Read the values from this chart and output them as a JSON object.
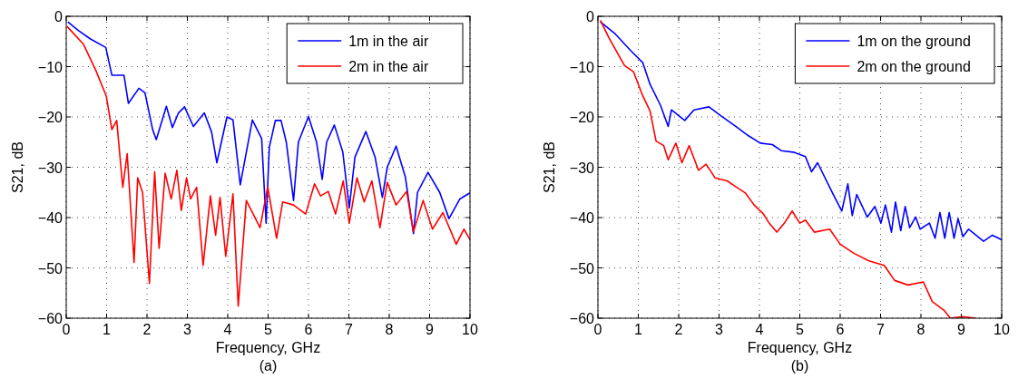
{
  "chart_data": [
    {
      "type": "line",
      "xlabel": "Frequency, GHz",
      "ylabel": "S21, dB",
      "annotations": [
        "(a)"
      ],
      "xlim": [
        0,
        10
      ],
      "ylim": [
        -60,
        0
      ],
      "xticks": [
        0,
        1,
        2,
        3,
        4,
        5,
        6,
        7,
        8,
        9,
        10
      ],
      "yticks": [
        -60,
        -50,
        -40,
        -30,
        -20,
        -10,
        0
      ],
      "grid": true,
      "legend": "top right",
      "marker": "none",
      "line_style": "solid",
      "series": [
        {
          "name": "1m in the air",
          "color": "#0000ff",
          "x": [
            0.04,
            0.3,
            0.6,
            0.98,
            1.13,
            1.43,
            1.54,
            1.8,
            1.95,
            2.14,
            2.23,
            2.48,
            2.63,
            2.78,
            2.93,
            3.15,
            3.42,
            3.6,
            3.73,
            3.98,
            4.13,
            4.31,
            4.61,
            4.84,
            4.95,
            5.03,
            5.18,
            5.32,
            5.45,
            5.63,
            5.75,
            6.0,
            6.2,
            6.34,
            6.45,
            6.64,
            6.85,
            7.01,
            7.15,
            7.42,
            7.65,
            7.83,
            7.95,
            8.17,
            8.4,
            8.6,
            8.7,
            8.96,
            9.25,
            9.48,
            9.75,
            10.0
          ],
          "values": [
            -1.1,
            -2.8,
            -4.5,
            -6.2,
            -11.7,
            -11.7,
            -17.3,
            -14.3,
            -15.2,
            -22.5,
            -24.5,
            -17.9,
            -22.1,
            -19.2,
            -18,
            -21.9,
            -19.2,
            -23,
            -29.1,
            -20,
            -20.6,
            -33.5,
            -20.6,
            -24.3,
            -41.1,
            -26,
            -20.7,
            -20.7,
            -25,
            -36.6,
            -25,
            -19.9,
            -25,
            -32.4,
            -25,
            -21.6,
            -27,
            -38.1,
            -28,
            -22.9,
            -28,
            -36,
            -30,
            -25.8,
            -32,
            -43.2,
            -35,
            -31,
            -35,
            -40.2,
            -36.3,
            -35.1
          ]
        },
        {
          "name": "2m in the air",
          "color": "#ff0000",
          "x": [
            0.02,
            0.43,
            0.73,
            0.99,
            1.13,
            1.25,
            1.4,
            1.51,
            1.68,
            1.77,
            1.89,
            2.06,
            2.19,
            2.3,
            2.45,
            2.6,
            2.74,
            2.85,
            2.98,
            3.08,
            3.23,
            3.39,
            3.57,
            3.7,
            3.81,
            3.95,
            4.13,
            4.26,
            4.46,
            4.8,
            4.99,
            5.21,
            5.36,
            5.63,
            5.93,
            6.15,
            6.3,
            6.49,
            6.67,
            6.86,
            7.01,
            7.2,
            7.38,
            7.57,
            7.77,
            7.95,
            8.17,
            8.43,
            8.6,
            8.84,
            9.07,
            9.33,
            9.66,
            9.85,
            10.0
          ],
          "values": [
            -2,
            -5.6,
            -10.7,
            -15.8,
            -22.5,
            -20.7,
            -34,
            -27.3,
            -48.9,
            -32.1,
            -35,
            -53.1,
            -30.9,
            -46.1,
            -31.2,
            -36.3,
            -30.6,
            -38.6,
            -32.1,
            -36.3,
            -34,
            -49.5,
            -35.7,
            -43.5,
            -36,
            -47.7,
            -35.3,
            -57.6,
            -36.6,
            -42,
            -33.9,
            -44.1,
            -36.9,
            -37.5,
            -39.3,
            -33.3,
            -35.7,
            -34.8,
            -39.3,
            -32.7,
            -41.1,
            -32.1,
            -36.9,
            -32.7,
            -42,
            -33,
            -37.5,
            -34.8,
            -42.8,
            -36.6,
            -42.3,
            -39,
            -45.3,
            -42.3,
            -44.4
          ]
        }
      ]
    },
    {
      "type": "line",
      "xlabel": "Frequency, GHz",
      "ylabel": "S21, dB",
      "annotations": [
        "(b)"
      ],
      "xlim": [
        0,
        10
      ],
      "ylim": [
        -60,
        0
      ],
      "xticks": [
        0,
        1,
        2,
        3,
        4,
        5,
        6,
        7,
        8,
        9,
        10
      ],
      "yticks": [
        -60,
        -50,
        -40,
        -30,
        -20,
        -10,
        0
      ],
      "grid": true,
      "legend": "top right",
      "marker": "none",
      "line_style": "solid",
      "series": [
        {
          "name": "1m on the ground",
          "color": "#0000ff",
          "x": [
            0.06,
            0.43,
            0.81,
            1.11,
            1.29,
            1.55,
            1.74,
            1.82,
            2.15,
            2.38,
            2.75,
            3.05,
            3.42,
            3.72,
            4.02,
            4.32,
            4.54,
            4.84,
            5.14,
            5.29,
            5.44,
            5.81,
            6.04,
            6.19,
            6.3,
            6.41,
            6.67,
            6.86,
            7.01,
            7.12,
            7.27,
            7.37,
            7.5,
            7.61,
            7.72,
            7.87,
            7.98,
            8.21,
            8.35,
            8.47,
            8.59,
            8.7,
            8.82,
            8.92,
            9.04,
            9.18,
            9.55,
            9.77,
            10.0
          ],
          "values": [
            -1.1,
            -3.5,
            -6.8,
            -9.2,
            -13.5,
            -17.7,
            -21.9,
            -18.6,
            -20.7,
            -18.6,
            -18,
            -19.8,
            -21.9,
            -23.7,
            -25.2,
            -25.5,
            -26.7,
            -27,
            -27.9,
            -30.9,
            -29.1,
            -35.1,
            -38.7,
            -33.3,
            -39.6,
            -35.4,
            -39.9,
            -37.8,
            -41.1,
            -37.5,
            -42.9,
            -36.9,
            -42.6,
            -37.8,
            -42,
            -39.9,
            -42.3,
            -41.1,
            -44.1,
            -39,
            -44.1,
            -39,
            -44.1,
            -40.2,
            -43.8,
            -42.3,
            -44.7,
            -43.5,
            -44.4
          ]
        },
        {
          "name": "2m on the ground",
          "color": "#ff0000",
          "x": [
            0.06,
            0.28,
            0.66,
            0.88,
            1.11,
            1.29,
            1.44,
            1.63,
            1.74,
            1.93,
            2.08,
            2.26,
            2.49,
            2.68,
            2.9,
            3.2,
            3.42,
            3.65,
            3.87,
            4.1,
            4.24,
            4.43,
            4.62,
            4.81,
            5.0,
            5.14,
            5.36,
            5.74,
            6.0,
            6.34,
            6.71,
            7.09,
            7.35,
            7.68,
            8.06,
            8.28,
            8.58,
            8.73,
            9.03,
            9.36
          ],
          "values": [
            -0.8,
            -4.4,
            -9.8,
            -11,
            -15.8,
            -18.8,
            -24.8,
            -25.7,
            -28.5,
            -25.2,
            -29.1,
            -25.7,
            -30.6,
            -29.4,
            -32.1,
            -32.7,
            -33.9,
            -35.1,
            -37.5,
            -39.3,
            -41.1,
            -42.9,
            -41.1,
            -38.7,
            -41.1,
            -40.5,
            -42.9,
            -42.3,
            -45.3,
            -47.1,
            -48.6,
            -49.5,
            -52.5,
            -53.4,
            -52.8,
            -56.7,
            -58.5,
            -60,
            -59.7,
            -60
          ]
        }
      ]
    }
  ]
}
